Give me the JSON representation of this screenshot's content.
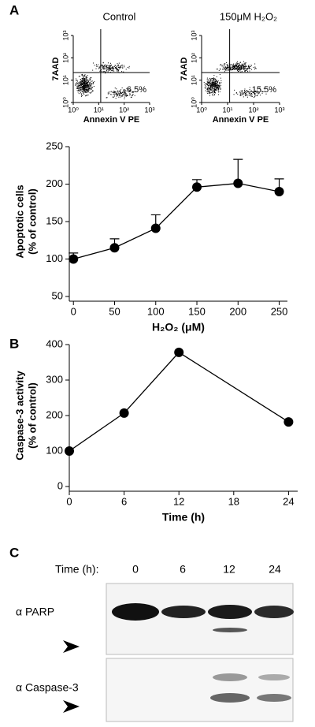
{
  "panel_labels": [
    "A",
    "B",
    "C"
  ],
  "chart_data": [
    {
      "type": "flow",
      "title": "Control",
      "xlabel": "Annexin V PE",
      "ylabel": "7AAD",
      "annotation": "6.5%",
      "log": true,
      "xlim": [
        1,
        1000
      ],
      "ylim": [
        1,
        1000
      ],
      "xticks": [
        {
          "value": 1,
          "label": "10⁰"
        },
        {
          "value": 10,
          "label": "10¹"
        },
        {
          "value": 100,
          "label": "10²"
        },
        {
          "value": 1000,
          "label": "10³"
        }
      ],
      "yticks": [
        {
          "value": 1,
          "label": "10⁰"
        },
        {
          "value": 10,
          "label": "10¹"
        },
        {
          "value": 100,
          "label": "10²"
        },
        {
          "value": 1000,
          "label": "10³"
        }
      ]
    },
    {
      "type": "flow",
      "title": "150μM  H₂O₂",
      "xlabel": "Annexin V PE",
      "ylabel": "7AAD",
      "annotation": "15.5%",
      "log": true,
      "xlim": [
        1,
        1000
      ],
      "ylim": [
        1,
        1000
      ],
      "xticks": [
        {
          "value": 1,
          "label": "10⁰"
        },
        {
          "value": 10,
          "label": "10¹"
        },
        {
          "value": 100,
          "label": "10²"
        },
        {
          "value": 1000,
          "label": "10³"
        }
      ],
      "yticks": [
        {
          "value": 1,
          "label": "10⁰"
        },
        {
          "value": 10,
          "label": "10¹"
        },
        {
          "value": 100,
          "label": "10²"
        },
        {
          "value": 1000,
          "label": "10³"
        }
      ]
    },
    {
      "type": "line",
      "xlabel": "H₂O₂ (μM)",
      "ylabel": [
        "Apoptotic cells",
        "(% of control)"
      ],
      "x": [
        0,
        50,
        100,
        150,
        200,
        250
      ],
      "values": [
        100,
        115,
        141,
        196,
        201,
        190
      ],
      "errors": [
        8,
        12,
        18,
        10,
        32,
        17
      ],
      "color": "#000000",
      "xlim": [
        -5,
        260
      ],
      "ylim": [
        50,
        250
      ],
      "xticks": [
        0,
        50,
        100,
        150,
        200,
        250
      ],
      "yticks": [
        50,
        100,
        150,
        200,
        250
      ]
    },
    {
      "type": "line",
      "xlabel": "Time (h)",
      "ylabel": [
        "Caspase-3 activity",
        "(% of control)"
      ],
      "x": [
        0,
        6,
        12,
        24
      ],
      "values": [
        100,
        207,
        378,
        182
      ],
      "color": "#000000",
      "xlim": [
        0,
        25
      ],
      "ylim": [
        0,
        400
      ],
      "xticks": [
        0,
        6,
        12,
        18,
        24
      ],
      "yticks": [
        0,
        100,
        200,
        300,
        400
      ]
    }
  ],
  "blot": {
    "time_label": "Time (h):",
    "lanes": [
      "0",
      "6",
      "12",
      "24"
    ],
    "rows": [
      "α PARP",
      "α Caspase-3"
    ]
  }
}
